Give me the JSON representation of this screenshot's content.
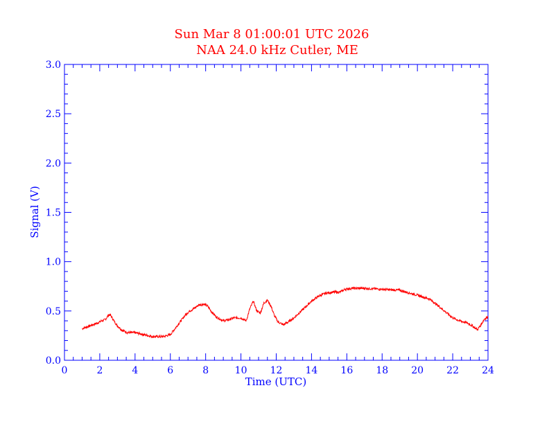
{
  "colors": {
    "axis": "#0000ff",
    "title": "#ff0000",
    "line": "#ff0000"
  },
  "chart_data": {
    "type": "line",
    "title": "Sun Mar 8 01:00:01 UTC 2026",
    "subtitle": "NAA 24.0 kHz Cutler, ME",
    "xlabel": "Time (UTC)",
    "ylabel": "Signal (V)",
    "xlim": [
      0,
      24
    ],
    "ylim": [
      0.0,
      3.0
    ],
    "x_ticks": [
      0,
      2,
      4,
      6,
      8,
      10,
      12,
      14,
      16,
      18,
      20,
      22,
      24
    ],
    "x_tick_labels": [
      "0",
      "2",
      "4",
      "6",
      "8",
      "10",
      "12",
      "14",
      "16",
      "18",
      "20",
      "22",
      "24"
    ],
    "y_ticks": [
      0.0,
      0.5,
      1.0,
      1.5,
      2.0,
      2.5,
      3.0
    ],
    "y_tick_labels": [
      "0.0",
      "0.5",
      "1.0",
      "1.5",
      "2.0",
      "2.5",
      "3.0"
    ],
    "grid": false,
    "series": [
      {
        "x": [
          1.0,
          1.3,
          1.6,
          1.9,
          2.1,
          2.3,
          2.5,
          2.6,
          2.8,
          3.0,
          3.3,
          3.6,
          4.0,
          4.5,
          5.0,
          5.3,
          5.6,
          6.0,
          6.3,
          6.6,
          6.9,
          7.1,
          7.3,
          7.6,
          7.9,
          8.1,
          8.3,
          8.6,
          9.0,
          9.3,
          9.6,
          10.0,
          10.3,
          10.5,
          10.7,
          10.9,
          11.1,
          11.3,
          11.5,
          11.7,
          11.9,
          12.1,
          12.4,
          12.7,
          13.0,
          13.3,
          13.6,
          14.0,
          14.4,
          14.8,
          15.2,
          15.6,
          15.9,
          16.3,
          17.0,
          18.0,
          19.0,
          20.0,
          20.7,
          21.2,
          21.6,
          22.0,
          22.4,
          22.8,
          23.1,
          23.4,
          23.6,
          23.8,
          24.0
        ],
        "y": [
          0.32,
          0.34,
          0.36,
          0.38,
          0.4,
          0.41,
          0.46,
          0.46,
          0.4,
          0.35,
          0.3,
          0.28,
          0.28,
          0.26,
          0.24,
          0.24,
          0.24,
          0.26,
          0.33,
          0.4,
          0.47,
          0.5,
          0.52,
          0.56,
          0.57,
          0.55,
          0.5,
          0.44,
          0.4,
          0.41,
          0.43,
          0.43,
          0.4,
          0.52,
          0.6,
          0.5,
          0.48,
          0.58,
          0.61,
          0.55,
          0.45,
          0.39,
          0.36,
          0.39,
          0.43,
          0.48,
          0.53,
          0.6,
          0.65,
          0.68,
          0.69,
          0.69,
          0.72,
          0.73,
          0.73,
          0.72,
          0.71,
          0.66,
          0.62,
          0.55,
          0.49,
          0.43,
          0.4,
          0.38,
          0.35,
          0.31,
          0.36,
          0.42,
          0.44
        ]
      }
    ]
  }
}
